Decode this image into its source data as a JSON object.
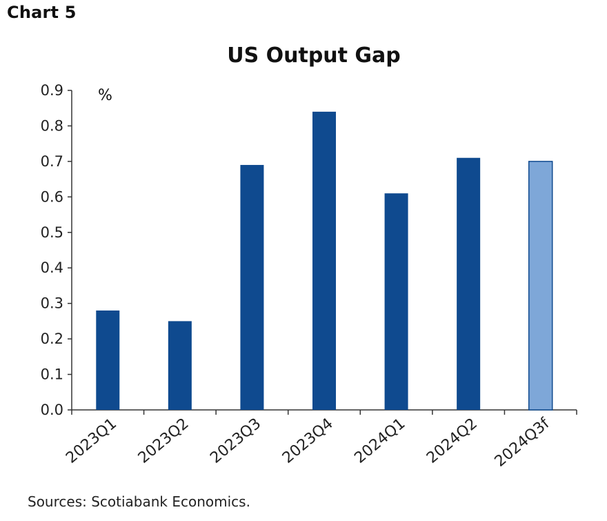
{
  "header": {
    "chart_number": "Chart 5",
    "source": "Sources: Scotiabank Economics."
  },
  "chart_data": {
    "type": "bar",
    "title": "US Output Gap",
    "unit_label": "%",
    "xlabel": "",
    "ylabel": "",
    "categories": [
      "2023Q1",
      "2023Q2",
      "2023Q3",
      "2023Q4",
      "2024Q1",
      "2024Q2",
      "2024Q3f"
    ],
    "values": [
      0.28,
      0.25,
      0.69,
      0.84,
      0.61,
      0.71,
      0.7
    ],
    "forecast": [
      false,
      false,
      false,
      false,
      false,
      false,
      true
    ],
    "ylim": [
      0.0,
      0.9
    ],
    "yticks": [
      0.0,
      0.1,
      0.2,
      0.3,
      0.4,
      0.5,
      0.6,
      0.7,
      0.8,
      0.9
    ],
    "ytick_labels": [
      "0.0",
      "0.1",
      "0.2",
      "0.3",
      "0.4",
      "0.5",
      "0.6",
      "0.7",
      "0.8",
      "0.9"
    ],
    "grid": false,
    "legend": "none",
    "colors": {
      "actual": "#0f4a8f",
      "forecast": "#7ea7d8",
      "forecast_border": "#0f4a8f",
      "axis": "#333333"
    }
  }
}
